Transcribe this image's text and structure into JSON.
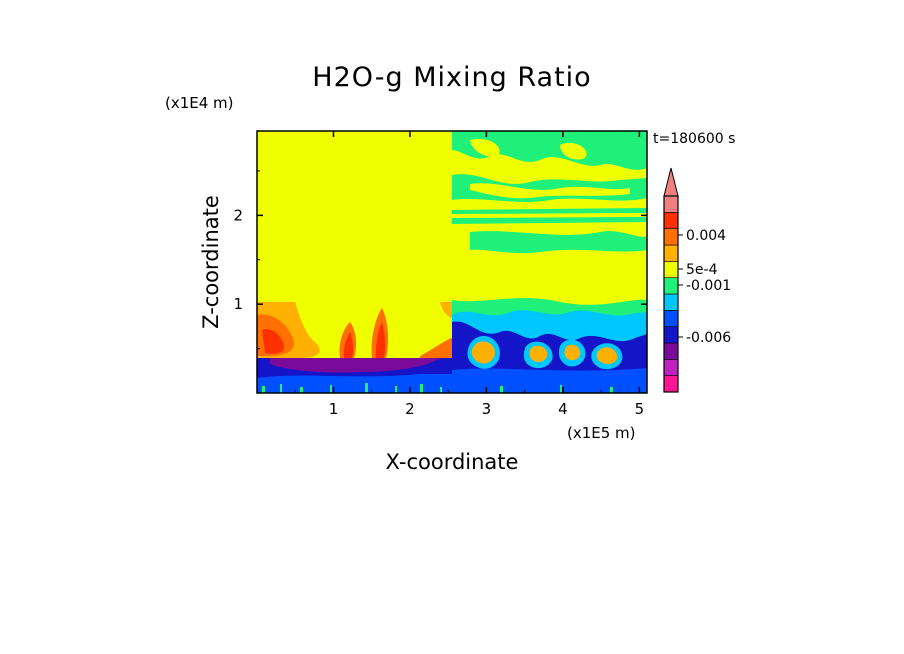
{
  "chart_data": {
    "type": "heatmap",
    "title": "H2O-g Mixing Ratio",
    "xlabel": "X-coordinate",
    "ylabel": "Z-coordinate",
    "x_unit": "(x1E5 m)",
    "y_unit": "(x1E4 m)",
    "time_label": "t=180600 s",
    "xlim": [
      0,
      5.1
    ],
    "ylim": [
      0,
      2.95
    ],
    "x_ticks": [
      1,
      2,
      3,
      4,
      5
    ],
    "y_ticks": [
      1,
      2
    ],
    "colorbar": {
      "extend": "max",
      "levels": [
        {
          "color": "#ff1493"
        },
        {
          "color": "#c020c0"
        },
        {
          "color": "#7a0a9a"
        },
        {
          "color": "#1414c8"
        },
        {
          "color": "#0050ff"
        },
        {
          "color": "#00c8ff"
        },
        {
          "color": "#1ef07a"
        },
        {
          "color": "#f0ff00"
        },
        {
          "color": "#ffb000"
        },
        {
          "color": "#ff7000"
        },
        {
          "color": "#ff3000"
        },
        {
          "color": "#f08080"
        }
      ],
      "top_color": "#f08080",
      "labels": [
        {
          "text": "0.004",
          "at": 0.004
        },
        {
          "text": "5e-4",
          "at": 0.0005
        },
        {
          "text": "-0.001",
          "at": -0.001
        },
        {
          "text": "-0.006",
          "at": -0.006
        }
      ]
    },
    "colors": {
      "background": "#f0ff00",
      "neg_strong": "#7a0a9a",
      "neg": "#1414c8",
      "neg_light": "#0050ff",
      "near_zero_neg": "#00c8ff",
      "near_zero": "#1ef07a",
      "pos": "#ffb000",
      "pos_strong": "#ff7000",
      "pos_max": "#ff3000"
    }
  }
}
